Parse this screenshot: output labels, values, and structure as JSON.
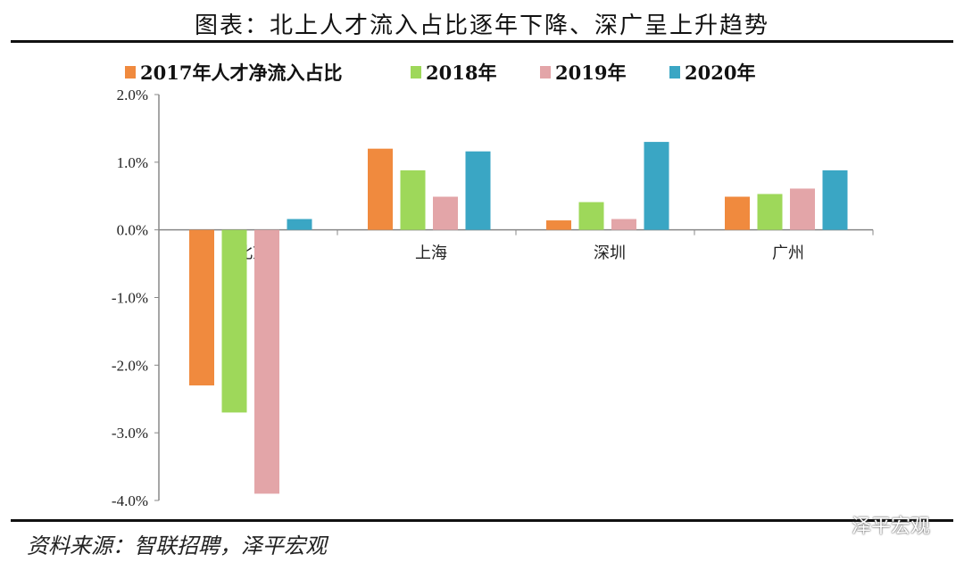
{
  "header": {
    "title": "图表：北上人才流入占比逐年下降、深广呈上升趋势"
  },
  "footer": {
    "source": "资料来源：智联招聘，泽平宏观",
    "watermark": "泽平宏观"
  },
  "chart_data": {
    "type": "bar",
    "title": "",
    "xlabel": "",
    "ylabel": "",
    "categories": [
      "北京",
      "上海",
      "深圳",
      "广州"
    ],
    "ylim": [
      -4.0,
      2.0
    ],
    "yticks": [
      "2.0%",
      "1.0%",
      "0.0%",
      "-1.0%",
      "-2.0%",
      "-3.0%",
      "-4.0%"
    ],
    "ytick_values": [
      2,
      1,
      0,
      -1,
      -2,
      -3,
      -4
    ],
    "unit": "%",
    "grid": false,
    "legend": "top",
    "series": [
      {
        "name": "2017年人才净流入占比",
        "color": "#f08a3e",
        "values": [
          -2.3,
          1.2,
          0.14,
          0.49
        ]
      },
      {
        "name": "2018年",
        "color": "#9ed85a",
        "values": [
          -2.7,
          0.88,
          0.41,
          0.53
        ]
      },
      {
        "name": "2019年",
        "color": "#e3a5a8",
        "values": [
          -3.9,
          0.49,
          0.16,
          0.61
        ]
      },
      {
        "name": "2020年",
        "color": "#3aa6c4",
        "values": [
          0.16,
          1.16,
          1.3,
          0.88
        ]
      }
    ]
  }
}
